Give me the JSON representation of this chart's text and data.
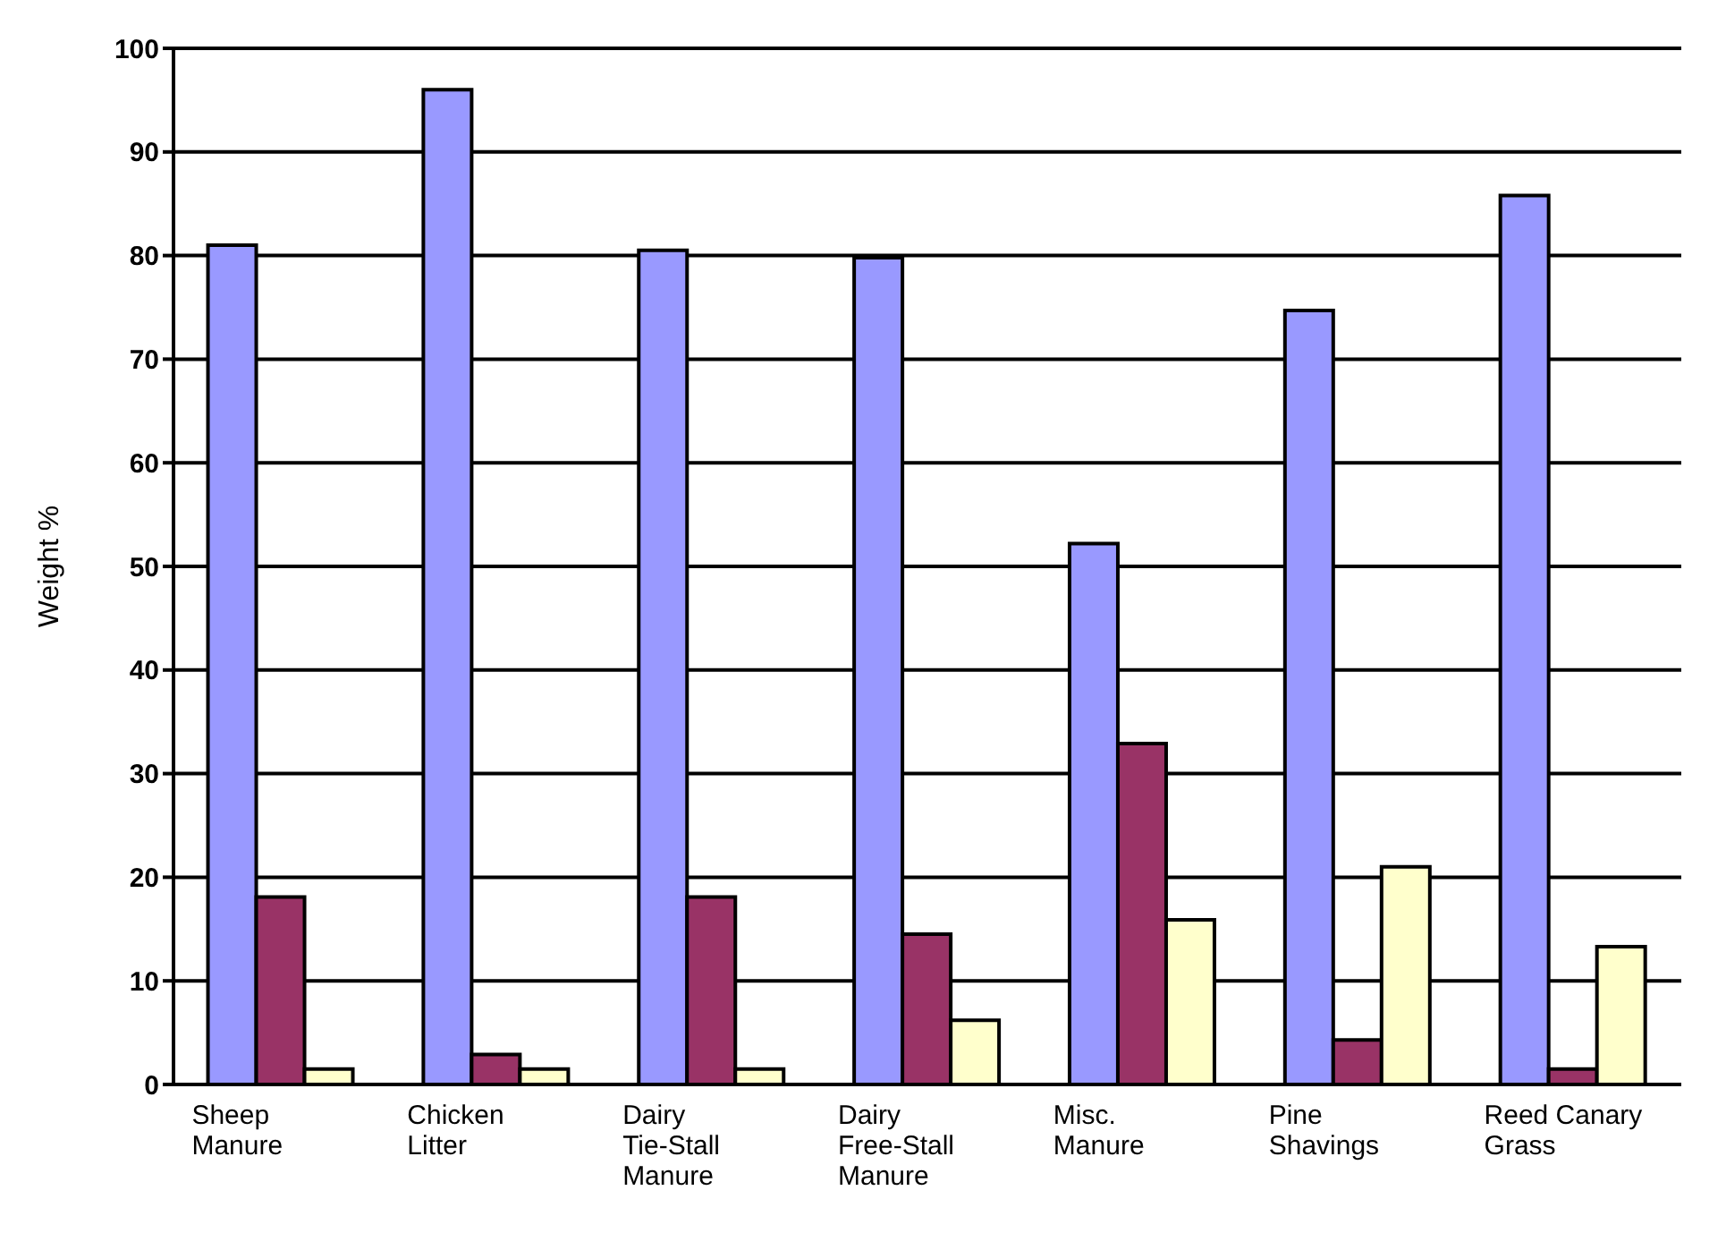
{
  "chart_data": {
    "type": "bar",
    "ylabel": "Weight %",
    "categories": [
      "Sheep Manure",
      "Chicken Litter",
      "Dairy Tie-Stall Manure",
      "Dairy Free-Stall Manure",
      "Misc. Manure",
      "Pine Shavings",
      "Reed Canary Grass"
    ],
    "series": [
      {
        "color": "#9999ff",
        "values": [
          81,
          96,
          80.5,
          79.8,
          52.2,
          74.7,
          85.8
        ]
      },
      {
        "color": "#993366",
        "values": [
          18.1,
          2.9,
          18.1,
          14.5,
          32.9,
          4.3,
          1.5
        ]
      },
      {
        "color": "#ffffcc",
        "values": [
          1.5,
          1.5,
          1.5,
          6.2,
          15.9,
          21,
          13.3
        ]
      }
    ],
    "ylim": [
      0,
      100
    ],
    "yticks": [
      0,
      10,
      20,
      30,
      40,
      50,
      60,
      70,
      80,
      90,
      100
    ],
    "grid": "y",
    "legend": false
  }
}
